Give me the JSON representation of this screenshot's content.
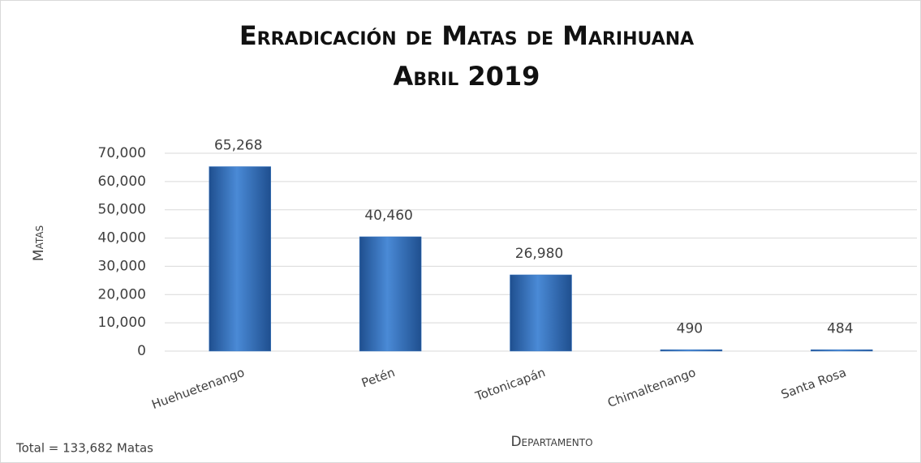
{
  "chart_data": {
    "type": "bar",
    "title": "Erradicación de Matas de Marihuana",
    "subtitle": "Abril 2019",
    "y_label": "Matas",
    "x_label": "Departamento",
    "annotation": "Total = 133,682 Matas",
    "categories": [
      "Huehuetenango",
      "Petén",
      "Totonicapán",
      "Chimaltenango",
      "Santa Rosa"
    ],
    "values": [
      65268,
      40460,
      26980,
      490,
      484
    ],
    "value_labels": [
      "65,268",
      "40,460",
      "26,980",
      "490",
      "484"
    ],
    "color": "#3a78c4",
    "ylim": [
      0,
      70000
    ],
    "yticks": [
      0,
      {
        "value": 10000,
        "label": "10,000"
      },
      {
        "value": 20000,
        "label": "20,000"
      },
      {
        "value": 30000,
        "label": "30,000"
      },
      {
        "value": 40000,
        "label": "40,000"
      },
      {
        "value": 50000,
        "label": "50,000"
      },
      {
        "value": 60000,
        "label": "60,000"
      },
      {
        "value": 70000,
        "label": "70,000"
      }
    ],
    "grid": true
  }
}
